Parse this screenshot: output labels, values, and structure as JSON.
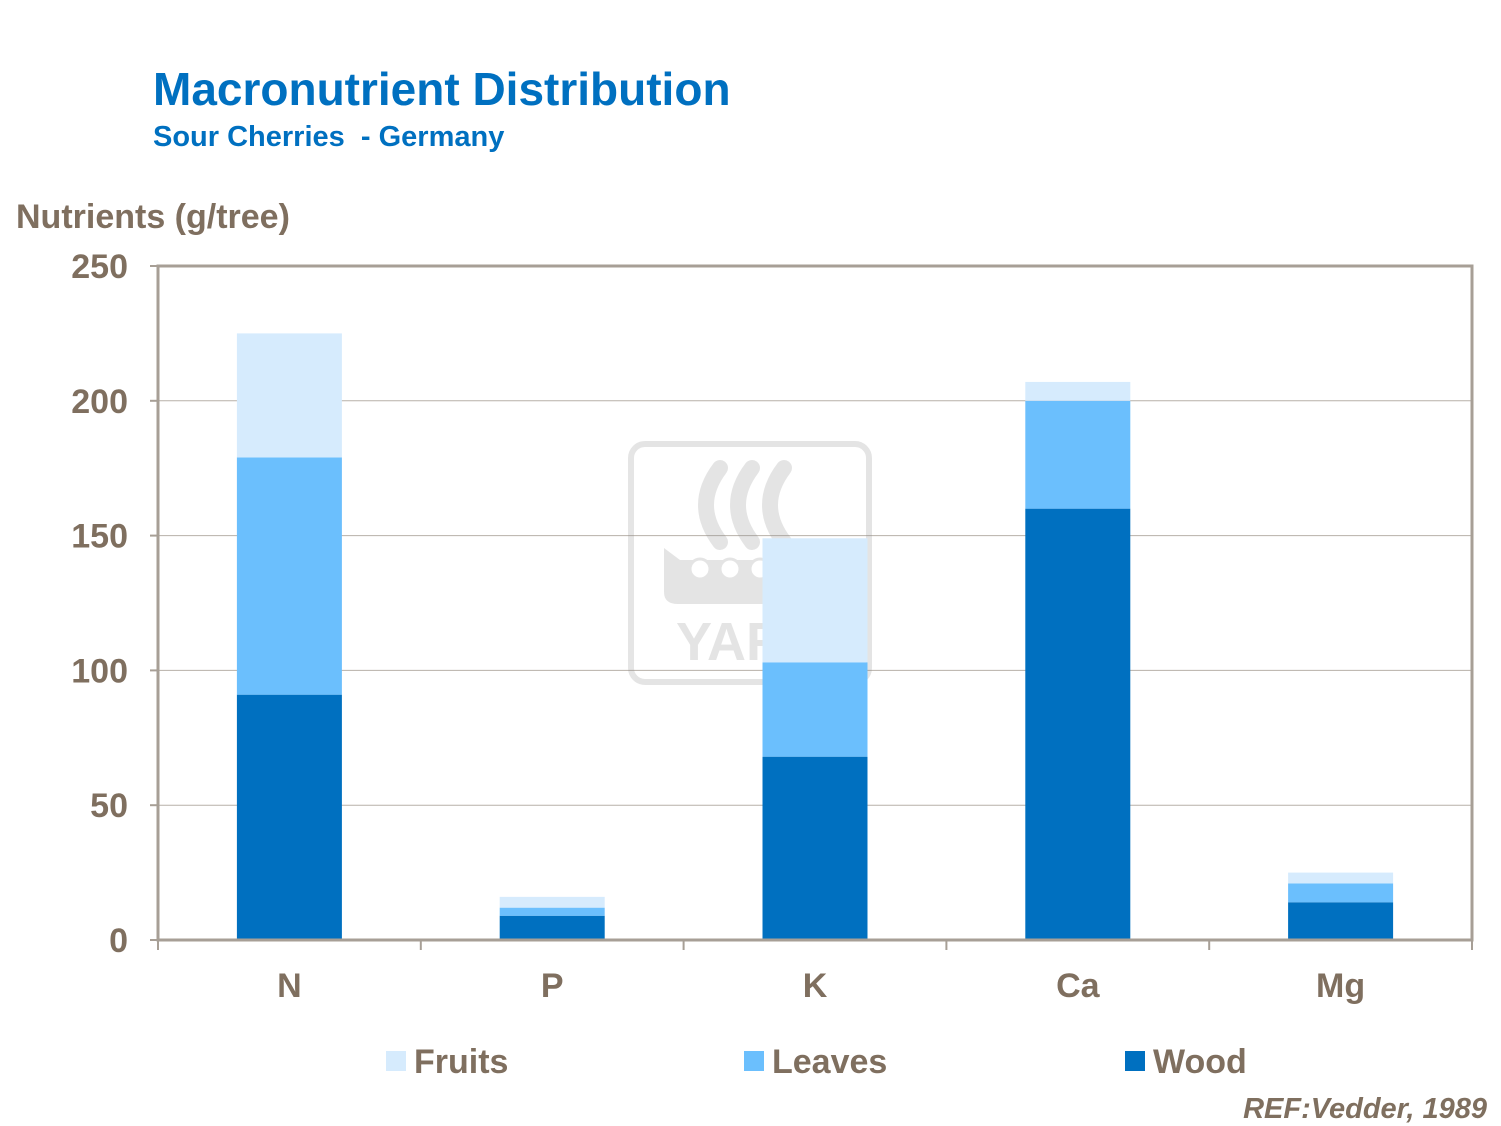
{
  "title": "Macronutrient Distribution",
  "subtitle": "Sour Cherries  - Germany",
  "reference": "REF:Vedder,  1989",
  "watermark": {
    "text": "YARA"
  },
  "colors": {
    "title": "#0070c0",
    "text": "#7f6f5f",
    "grid": "#b7b0a8",
    "frame": "#a79f96",
    "fruits": "#d6ebfd",
    "leaves": "#6bbffd",
    "wood": "#0070c0"
  },
  "chart_data": {
    "type": "bar",
    "stacked": true,
    "ylabel": "Nutrients (g/tree)",
    "xlabel": "",
    "ylim": [
      0,
      250
    ],
    "yticks": [
      0,
      50,
      100,
      150,
      200,
      250
    ],
    "grid": true,
    "legend_position": "bottom",
    "categories": [
      "N",
      "P",
      "K",
      "Ca",
      "Mg"
    ],
    "series": [
      {
        "name": "Wood",
        "color": "#0070c0",
        "values": [
          91,
          9,
          68,
          160,
          14
        ]
      },
      {
        "name": "Leaves",
        "color": "#6bbffd",
        "values": [
          88,
          3,
          35,
          40,
          7
        ]
      },
      {
        "name": "Fruits",
        "color": "#d6ebfd",
        "values": [
          46,
          4,
          46,
          7,
          4
        ]
      }
    ],
    "legend_order": [
      "Fruits",
      "Leaves",
      "Wood"
    ]
  }
}
